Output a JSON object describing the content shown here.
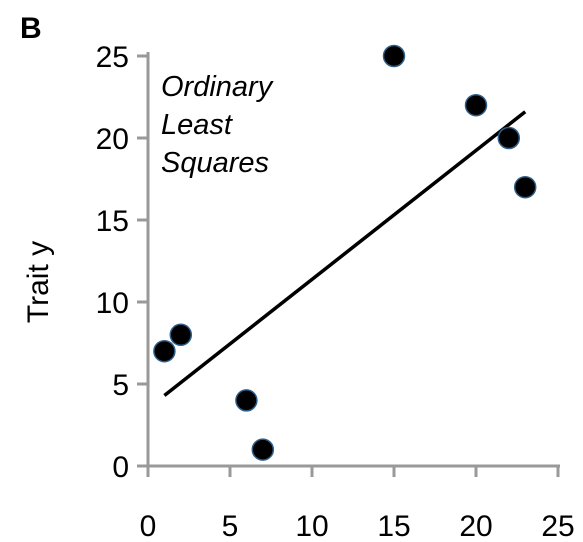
{
  "panel_label": "B",
  "chart_data": {
    "type": "scatter",
    "title": "",
    "xlabel": "",
    "ylabel": "Trait y",
    "annotation": [
      "Ordinary",
      "Least",
      "Squares"
    ],
    "xlim": [
      0,
      25
    ],
    "ylim": [
      0,
      25
    ],
    "xticks": [
      0,
      5,
      10,
      15,
      20,
      25
    ],
    "yticks": [
      0,
      5,
      10,
      15,
      20,
      25
    ],
    "grid": false,
    "points": [
      {
        "x": 1,
        "y": 7
      },
      {
        "x": 2,
        "y": 8
      },
      {
        "x": 6,
        "y": 4
      },
      {
        "x": 7,
        "y": 1
      },
      {
        "x": 15,
        "y": 25
      },
      {
        "x": 20,
        "y": 22
      },
      {
        "x": 22,
        "y": 20
      },
      {
        "x": 23,
        "y": 17
      }
    ],
    "fit_line": {
      "label": "Ordinary Least Squares",
      "x": [
        1,
        23
      ],
      "y": [
        4.3,
        21.6
      ]
    },
    "colors": {
      "axis": "#999999",
      "marker": "#000000",
      "marker_edge": "#2e5f8a",
      "line": "#000000"
    }
  }
}
